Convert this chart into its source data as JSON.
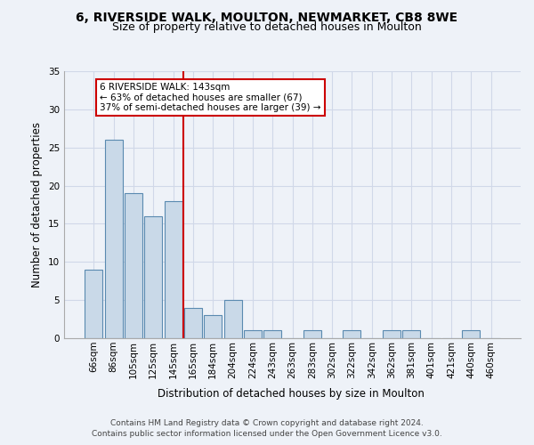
{
  "title_line1": "6, RIVERSIDE WALK, MOULTON, NEWMARKET, CB8 8WE",
  "title_line2": "Size of property relative to detached houses in Moulton",
  "xlabel": "Distribution of detached houses by size in Moulton",
  "ylabel": "Number of detached properties",
  "categories": [
    "66sqm",
    "86sqm",
    "105sqm",
    "125sqm",
    "145sqm",
    "165sqm",
    "184sqm",
    "204sqm",
    "224sqm",
    "243sqm",
    "263sqm",
    "283sqm",
    "302sqm",
    "322sqm",
    "342sqm",
    "362sqm",
    "381sqm",
    "401sqm",
    "421sqm",
    "440sqm",
    "460sqm"
  ],
  "values": [
    9,
    26,
    19,
    16,
    18,
    4,
    3,
    5,
    1,
    1,
    0,
    1,
    0,
    1,
    0,
    1,
    1,
    0,
    0,
    1,
    0
  ],
  "bar_color": "#c9d9e8",
  "bar_edge_color": "#5a8ab0",
  "vline_index": 4,
  "vline_color": "#cc0000",
  "annotation_box_text": "6 RIVERSIDE WALK: 143sqm\n← 63% of detached houses are smaller (67)\n37% of semi-detached houses are larger (39) →",
  "annotation_box_color": "#cc0000",
  "annotation_bg_color": "#ffffff",
  "ylim": [
    0,
    35
  ],
  "yticks": [
    0,
    5,
    10,
    15,
    20,
    25,
    30,
    35
  ],
  "grid_color": "#d0d8e8",
  "background_color": "#eef2f8",
  "footer_line1": "Contains HM Land Registry data © Crown copyright and database right 2024.",
  "footer_line2": "Contains public sector information licensed under the Open Government Licence v3.0.",
  "title_fontsize": 10,
  "subtitle_fontsize": 9,
  "label_fontsize": 8.5,
  "tick_fontsize": 7.5,
  "footer_fontsize": 6.5,
  "ann_fontsize": 7.5
}
